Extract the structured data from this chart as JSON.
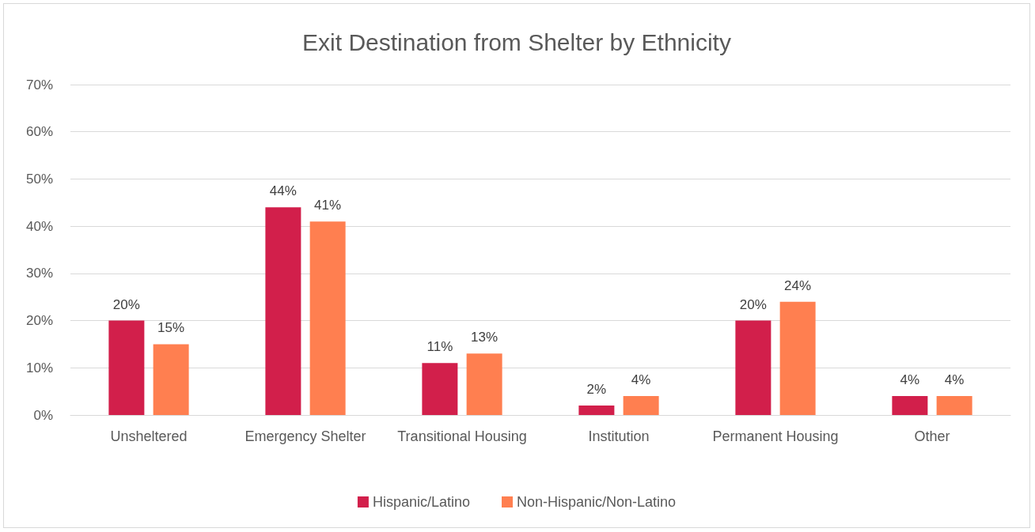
{
  "chart_data": {
    "type": "bar",
    "title": "Exit Destination from Shelter by Ethnicity",
    "categories": [
      "Unsheltered",
      "Emergency Shelter",
      "Transitional Housing",
      "Institution",
      "Permanent Housing",
      "Other"
    ],
    "series": [
      {
        "name": "Hispanic/Latino",
        "color": "#d21f4b",
        "values": [
          20,
          44,
          11,
          2,
          20,
          4
        ],
        "value_labels": [
          "20%",
          "44%",
          "11%",
          "2%",
          "20%",
          "4%"
        ]
      },
      {
        "name": "Non-Hispanic/Non-Latino",
        "color": "#ff7f50",
        "values": [
          15,
          41,
          13,
          4,
          24,
          4
        ],
        "value_labels": [
          "15%",
          "41%",
          "13%",
          "4%",
          "24%",
          "4%"
        ]
      }
    ],
    "ylim": [
      0,
      70
    ],
    "yticks": [
      {
        "value": 0,
        "label": "0%"
      },
      {
        "value": 10,
        "label": "10%"
      },
      {
        "value": 20,
        "label": "20%"
      },
      {
        "value": 30,
        "label": "30%"
      },
      {
        "value": 40,
        "label": "40%"
      },
      {
        "value": 50,
        "label": "50%"
      },
      {
        "value": 60,
        "label": "60%"
      },
      {
        "value": 70,
        "label": "70%"
      }
    ],
    "grid": "y",
    "legend": "bottom"
  }
}
